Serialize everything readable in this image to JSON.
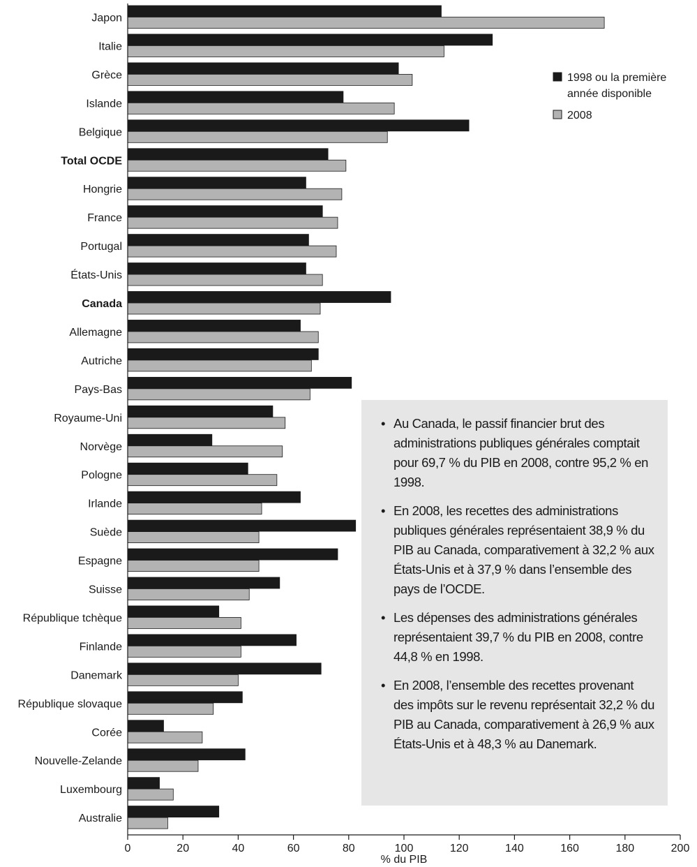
{
  "chart_data": {
    "type": "bar",
    "orientation": "horizontal",
    "categories": [
      "Japon",
      "Italie",
      "Grèce",
      "Islande",
      "Belgique",
      "Total OCDE",
      "Hongrie",
      "France",
      "Portugal",
      "États-Unis",
      "Canada",
      "Allemagne",
      "Autriche",
      "Pays-Bas",
      "Royaume-Uni",
      "Norvège",
      "Pologne",
      "Irlande",
      "Suède",
      "Espagne",
      "Suisse",
      "République tchèque",
      "Finlande",
      "Danemark",
      "République slovaque",
      "Corée",
      "Nouvelle-Zelande",
      "Luxembourg",
      "Australie"
    ],
    "bold_categories": [
      "Total OCDE",
      "Canada"
    ],
    "series": [
      {
        "name": "1998 ou la première année disponible",
        "color": "#1a1a1a",
        "values": [
          113.5,
          132,
          98,
          78,
          123.5,
          72.5,
          64.5,
          70.5,
          65.5,
          64.5,
          95.2,
          62.5,
          69,
          81,
          52.5,
          30.5,
          43.5,
          62.5,
          82.5,
          76,
          55,
          33,
          61,
          70,
          41.5,
          13,
          42.5,
          11.5,
          33
        ]
      },
      {
        "name": "2008",
        "color": "#b3b3b3",
        "values": [
          172.5,
          114.5,
          103,
          96.5,
          94,
          79,
          77.5,
          76,
          75.5,
          70.5,
          69.7,
          69,
          66.5,
          66,
          57,
          56,
          54,
          48.5,
          47.5,
          47.5,
          44,
          41,
          41,
          40,
          31,
          27,
          25.5,
          16.5,
          14.5
        ]
      }
    ],
    "xlabel": "% du PIB",
    "xlim": [
      0,
      200
    ],
    "xticks": [
      0,
      20,
      40,
      60,
      80,
      100,
      120,
      140,
      160,
      180,
      200
    ],
    "grid": false,
    "legend_position": "top-right"
  },
  "notes": [
    "Au Canada, le passif financier brut des administrations publiques générales comptait pour 69,7 % du PIB en 2008, contre 95,2 % en 1998.",
    "En 2008, les recettes des administrations publiques générales représentaient 38,9 % du PIB au Canada, comparativement à 32,2 % aux États-Unis et à 37,9 % dans l’ensemble des pays de l’OCDE.",
    "Les dépenses des administrations générales représentaient 39,7 % du PIB en 2008, contre 44,8 % en 1998.",
    "En 2008, l’ensemble des recettes provenant des impôts sur le revenu représentait 32,2 % du PIB au Canada, comparativement à 26,9 % aux États-Unis et à 48,3 % au Danemark."
  ],
  "bullet_symbol": "•"
}
